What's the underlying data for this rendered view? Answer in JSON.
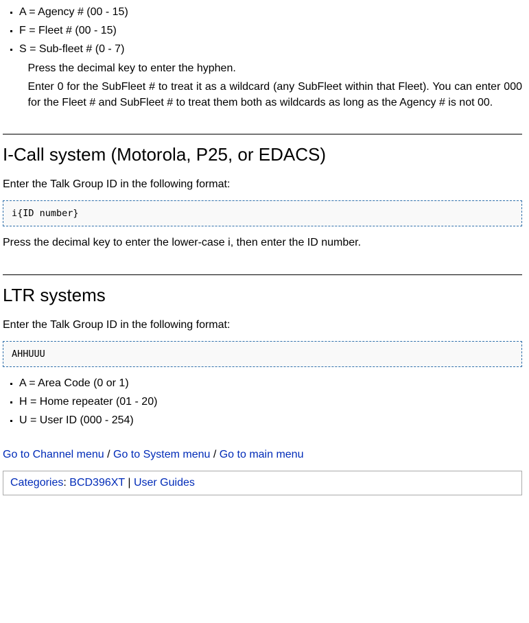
{
  "top_list": {
    "items": [
      "A = Agency # (00 - 15)",
      "F = Fleet # (00 - 15)",
      "S = Sub-fleet # (0 - 7)"
    ],
    "para1": "Press the decimal key to enter the hyphen.",
    "para2": "Enter 0 for the SubFleet # to treat it as a wildcard (any SubFleet within that Fleet). You can enter 000 for the Fleet # and SubFleet # to treat them both as wildcards as long as the Agency # is not 00."
  },
  "icall": {
    "heading": "I-Call system (Motorola, P25, or EDACS)",
    "intro": "Enter the Talk Group ID in the following format:",
    "code": "i{ID number}",
    "after": "Press the decimal key to enter the lower-case i, then enter the ID number."
  },
  "ltr": {
    "heading": "LTR systems",
    "intro": "Enter the Talk Group ID in the following format:",
    "code": "AHHUUU",
    "items": [
      "A = Area Code (0 or 1)",
      "H = Home repeater (01 - 20)",
      "U = User ID (000 - 254)"
    ]
  },
  "nav": {
    "link1": "Go to Channel menu",
    "sep": " / ",
    "link2": "Go to System menu",
    "link3": "Go to main menu"
  },
  "cat": {
    "label": "Categories",
    "colon": ": ",
    "link1": "BCD396XT",
    "sep": " | ",
    "link2": "User Guides"
  }
}
